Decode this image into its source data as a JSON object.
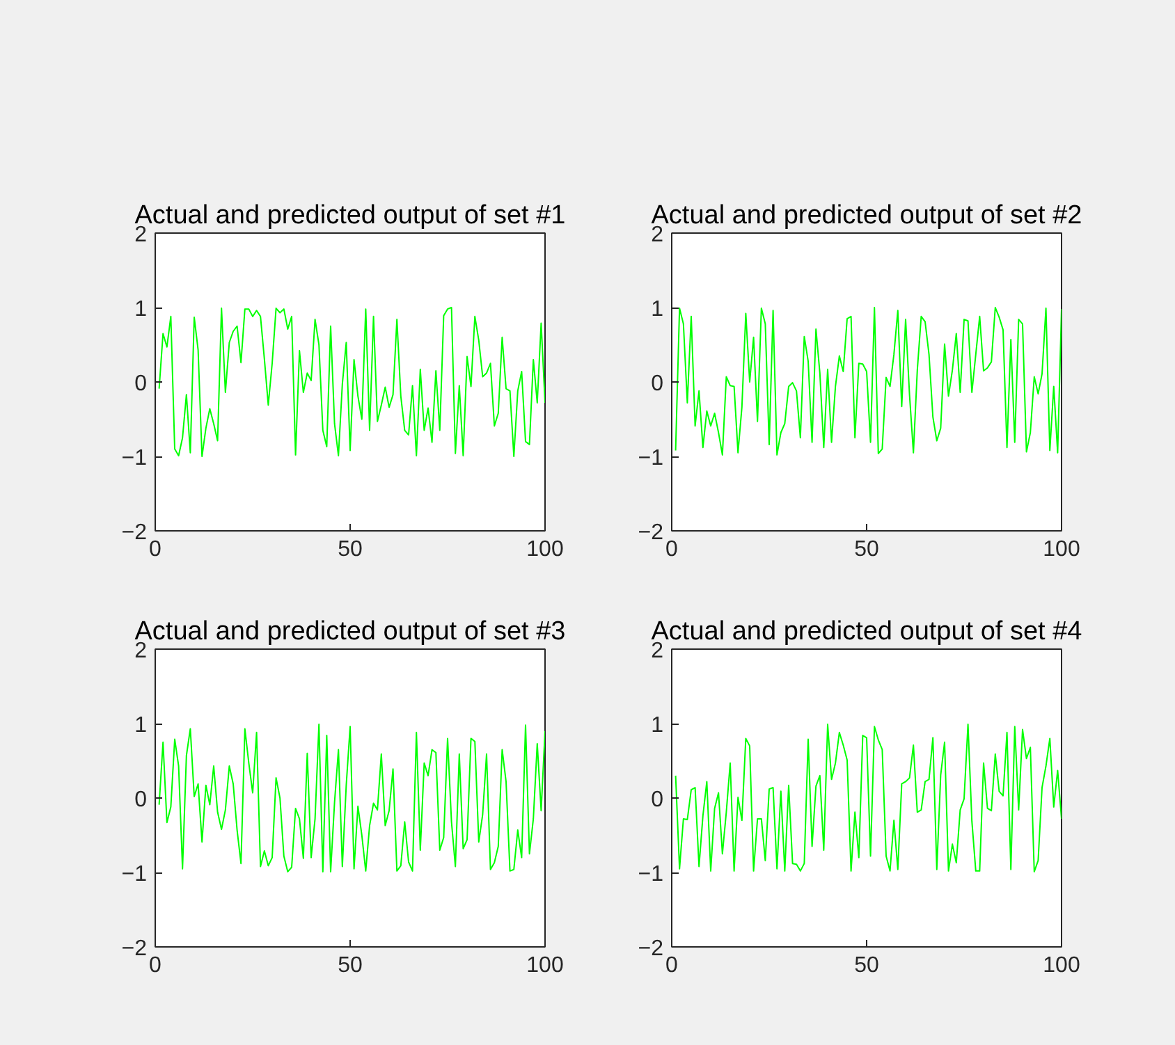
{
  "chart_data": [
    {
      "type": "line",
      "title": "Actual and predicted output of set #1",
      "x": [
        1,
        2,
        3,
        4,
        5,
        6,
        7,
        8,
        9,
        10,
        11,
        12,
        13,
        14,
        15,
        16,
        17,
        18,
        19,
        20,
        21,
        22,
        23,
        24,
        25,
        26,
        27,
        28,
        29,
        30,
        31,
        32,
        33,
        34,
        35,
        36,
        37,
        38,
        39,
        40,
        41,
        42,
        43,
        44,
        45,
        46,
        47,
        48,
        49,
        50,
        51,
        52,
        53,
        54,
        55,
        56,
        57,
        58,
        59,
        60,
        61,
        62,
        63,
        64,
        65,
        66,
        67,
        68,
        69,
        70,
        71,
        72,
        73,
        74,
        75,
        76,
        77,
        78,
        79,
        80,
        81,
        82,
        83,
        84,
        85,
        86,
        87,
        88,
        89,
        90,
        91,
        92,
        93,
        94,
        95,
        96,
        97,
        98,
        99,
        100
      ],
      "series": [
        {
          "color": "#00ff00",
          "values": [
            -0.09,
            0.65,
            0.47,
            0.88,
            -0.9,
            -0.99,
            -0.75,
            -0.17,
            -0.95,
            0.87,
            0.43,
            -1.0,
            -0.62,
            -0.36,
            -0.56,
            -0.79,
            0.99,
            -0.14,
            0.53,
            0.68,
            0.75,
            0.26,
            0.98,
            0.98,
            0.88,
            0.96,
            0.88,
            0.31,
            -0.31,
            0.25,
            0.99,
            0.93,
            0.98,
            0.71,
            0.88,
            -0.98,
            0.42,
            -0.14,
            0.12,
            0.02,
            0.84,
            0.5,
            -0.65,
            -0.87,
            0.75,
            -0.56,
            -0.99,
            -0.03,
            0.53,
            -0.92,
            0.3,
            -0.19,
            -0.5,
            0.98,
            -0.65,
            0.88,
            -0.53,
            -0.31,
            -0.07,
            -0.34,
            -0.17,
            0.84,
            -0.19,
            -0.65,
            -0.71,
            -0.05,
            -0.99,
            0.17,
            -0.65,
            -0.35,
            -0.81,
            0.15,
            -0.65,
            0.89,
            0.98,
            1.0,
            -0.96,
            -0.05,
            -0.99,
            0.34,
            -0.06,
            0.88,
            0.56,
            0.07,
            0.12,
            0.25,
            -0.59,
            -0.42,
            0.6,
            -0.09,
            -0.12,
            -1.0,
            -0.12,
            0.14,
            -0.8,
            -0.84,
            0.3,
            -0.28,
            0.79,
            -0.28
          ]
        }
      ],
      "xlim": [
        0,
        100
      ],
      "ylim": [
        -2,
        2
      ],
      "xticks": [
        0,
        50,
        100
      ],
      "yticks": [
        -2,
        -1,
        0,
        1,
        2
      ],
      "grid": false
    },
    {
      "type": "line",
      "title": "Actual and predicted output of set #2",
      "x": [
        1,
        2,
        3,
        4,
        5,
        6,
        7,
        8,
        9,
        10,
        11,
        12,
        13,
        14,
        15,
        16,
        17,
        18,
        19,
        20,
        21,
        22,
        23,
        24,
        25,
        26,
        27,
        28,
        29,
        30,
        31,
        32,
        33,
        34,
        35,
        36,
        37,
        38,
        39,
        40,
        41,
        42,
        43,
        44,
        45,
        46,
        47,
        48,
        49,
        50,
        51,
        52,
        53,
        54,
        55,
        56,
        57,
        58,
        59,
        60,
        61,
        62,
        63,
        64,
        65,
        66,
        67,
        68,
        69,
        70,
        71,
        72,
        73,
        74,
        75,
        76,
        77,
        78,
        79,
        80,
        81,
        82,
        83,
        84,
        85,
        86,
        87,
        88,
        89,
        90,
        91,
        92,
        93,
        94,
        95,
        96,
        97,
        98,
        99,
        100
      ],
      "series": [
        {
          "color": "#00ff00",
          "values": [
            -0.92,
            0.99,
            0.78,
            -0.28,
            0.88,
            -0.59,
            -0.12,
            -0.88,
            -0.39,
            -0.59,
            -0.42,
            -0.68,
            -0.98,
            0.07,
            -0.05,
            -0.06,
            -0.95,
            -0.34,
            0.92,
            0.0,
            0.6,
            -0.53,
            0.99,
            0.78,
            -0.84,
            0.96,
            -0.98,
            -0.68,
            -0.56,
            -0.06,
            -0.01,
            -0.12,
            -0.75,
            0.61,
            0.28,
            -0.81,
            0.71,
            0.12,
            -0.88,
            0.17,
            -0.81,
            -0.06,
            0.35,
            0.14,
            0.85,
            0.88,
            -0.75,
            0.25,
            0.24,
            0.14,
            -0.81,
            1.0,
            -0.96,
            -0.9,
            0.06,
            -0.06,
            0.37,
            0.96,
            -0.33,
            0.84,
            -0.17,
            -0.95,
            0.16,
            0.88,
            0.81,
            0.37,
            -0.47,
            -0.79,
            -0.62,
            0.51,
            -0.19,
            0.16,
            0.65,
            -0.14,
            0.84,
            0.82,
            -0.14,
            0.37,
            0.88,
            0.15,
            0.19,
            0.27,
            1.0,
            0.87,
            0.7,
            -0.88,
            0.57,
            -0.81,
            0.84,
            0.78,
            -0.94,
            -0.68,
            0.07,
            -0.16,
            0.11,
            0.99,
            -0.92,
            -0.06,
            -0.95,
            0.98
          ]
        }
      ],
      "xlim": [
        0,
        100
      ],
      "ylim": [
        -2,
        2
      ],
      "xticks": [
        0,
        50,
        100
      ],
      "yticks": [
        -2,
        -1,
        0,
        1,
        2
      ],
      "grid": false
    },
    {
      "type": "line",
      "title": "Actual and predicted output of set #3",
      "x": [
        1,
        2,
        3,
        4,
        5,
        6,
        7,
        8,
        9,
        10,
        11,
        12,
        13,
        14,
        15,
        16,
        17,
        18,
        19,
        20,
        21,
        22,
        23,
        24,
        25,
        26,
        27,
        28,
        29,
        30,
        31,
        32,
        33,
        34,
        35,
        36,
        37,
        38,
        39,
        40,
        41,
        42,
        43,
        44,
        45,
        46,
        47,
        48,
        49,
        50,
        51,
        52,
        53,
        54,
        55,
        56,
        57,
        58,
        59,
        60,
        61,
        62,
        63,
        64,
        65,
        66,
        67,
        68,
        69,
        70,
        71,
        72,
        73,
        74,
        75,
        76,
        77,
        78,
        79,
        80,
        81,
        82,
        83,
        84,
        85,
        86,
        87,
        88,
        89,
        90,
        91,
        92,
        93,
        94,
        95,
        96,
        97,
        98,
        99,
        100
      ],
      "series": [
        {
          "color": "#00ff00",
          "values": [
            -0.09,
            0.75,
            -0.33,
            -0.12,
            0.79,
            0.43,
            -0.95,
            0.57,
            0.93,
            0.02,
            0.19,
            -0.59,
            0.17,
            -0.09,
            0.43,
            -0.19,
            -0.42,
            -0.16,
            0.43,
            0.19,
            -0.43,
            -0.88,
            0.93,
            0.47,
            0.07,
            0.88,
            -0.92,
            -0.71,
            -0.91,
            -0.8,
            0.27,
            0.0,
            -0.78,
            -0.99,
            -0.93,
            -0.14,
            -0.28,
            -0.81,
            0.6,
            -0.8,
            -0.28,
            0.99,
            -0.99,
            0.84,
            -0.99,
            -0.06,
            0.65,
            -0.92,
            0.17,
            0.96,
            -0.95,
            -0.11,
            -0.5,
            -0.98,
            -0.37,
            -0.07,
            -0.16,
            0.59,
            -0.37,
            -0.17,
            0.39,
            -0.98,
            -0.91,
            -0.32,
            -0.86,
            -0.98,
            0.88,
            -0.7,
            0.47,
            0.3,
            0.65,
            0.61,
            -0.7,
            -0.53,
            0.8,
            -0.32,
            -0.92,
            0.59,
            -0.68,
            -0.56,
            0.8,
            0.76,
            -0.59,
            -0.22,
            0.59,
            -0.96,
            -0.87,
            -0.65,
            0.65,
            0.22,
            -0.98,
            -0.96,
            -0.43,
            -0.8,
            0.98,
            -0.75,
            -0.28,
            0.73,
            -0.17,
            0.9
          ]
        }
      ],
      "xlim": [
        0,
        100
      ],
      "ylim": [
        -2,
        2
      ],
      "xticks": [
        0,
        50,
        100
      ],
      "yticks": [
        -2,
        -1,
        0,
        1,
        2
      ],
      "grid": false
    },
    {
      "type": "line",
      "title": "Actual and predicted output of set #4",
      "x": [
        1,
        2,
        3,
        4,
        5,
        6,
        7,
        8,
        9,
        10,
        11,
        12,
        13,
        14,
        15,
        16,
        17,
        18,
        19,
        20,
        21,
        22,
        23,
        24,
        25,
        26,
        27,
        28,
        29,
        30,
        31,
        32,
        33,
        34,
        35,
        36,
        37,
        38,
        39,
        40,
        41,
        42,
        43,
        44,
        45,
        46,
        47,
        48,
        49,
        50,
        51,
        52,
        53,
        54,
        55,
        56,
        57,
        58,
        59,
        60,
        61,
        62,
        63,
        64,
        65,
        66,
        67,
        68,
        69,
        70,
        71,
        72,
        73,
        74,
        75,
        76,
        77,
        78,
        79,
        80,
        81,
        82,
        83,
        84,
        85,
        86,
        87,
        88,
        89,
        90,
        91,
        92,
        93,
        94,
        95,
        96,
        97,
        98,
        99,
        100
      ],
      "series": [
        {
          "color": "#00ff00",
          "values": [
            0.3,
            -0.95,
            -0.28,
            -0.29,
            0.11,
            0.14,
            -0.92,
            -0.24,
            0.22,
            -0.98,
            -0.14,
            0.07,
            -0.75,
            -0.19,
            0.47,
            -0.98,
            0.01,
            -0.3,
            0.8,
            0.7,
            -0.98,
            -0.28,
            -0.28,
            -0.84,
            0.12,
            0.14,
            -0.95,
            0.09,
            -0.98,
            0.17,
            -0.88,
            -0.89,
            -0.98,
            -0.88,
            0.79,
            -0.65,
            0.16,
            0.3,
            -0.7,
            0.99,
            0.25,
            0.47,
            0.88,
            0.71,
            0.51,
            -0.98,
            -0.19,
            -0.8,
            0.84,
            0.81,
            -0.78,
            0.96,
            0.78,
            0.65,
            -0.78,
            -0.98,
            -0.3,
            -0.96,
            0.19,
            0.22,
            0.27,
            0.71,
            -0.19,
            -0.16,
            0.22,
            0.25,
            0.81,
            -0.96,
            0.31,
            0.75,
            -0.98,
            -0.62,
            -0.87,
            -0.16,
            -0.01,
            0.99,
            -0.31,
            -0.98,
            -0.98,
            0.47,
            -0.14,
            -0.17,
            0.59,
            0.09,
            0.03,
            0.88,
            -0.96,
            0.96,
            -0.16,
            0.92,
            0.53,
            0.68,
            -0.99,
            -0.84,
            0.14,
            0.43,
            0.8,
            -0.12,
            0.37,
            -0.28
          ]
        }
      ],
      "xlim": [
        0,
        100
      ],
      "ylim": [
        -2,
        2
      ],
      "xticks": [
        0,
        50,
        100
      ],
      "yticks": [
        -2,
        -1,
        0,
        1,
        2
      ],
      "grid": false
    }
  ]
}
